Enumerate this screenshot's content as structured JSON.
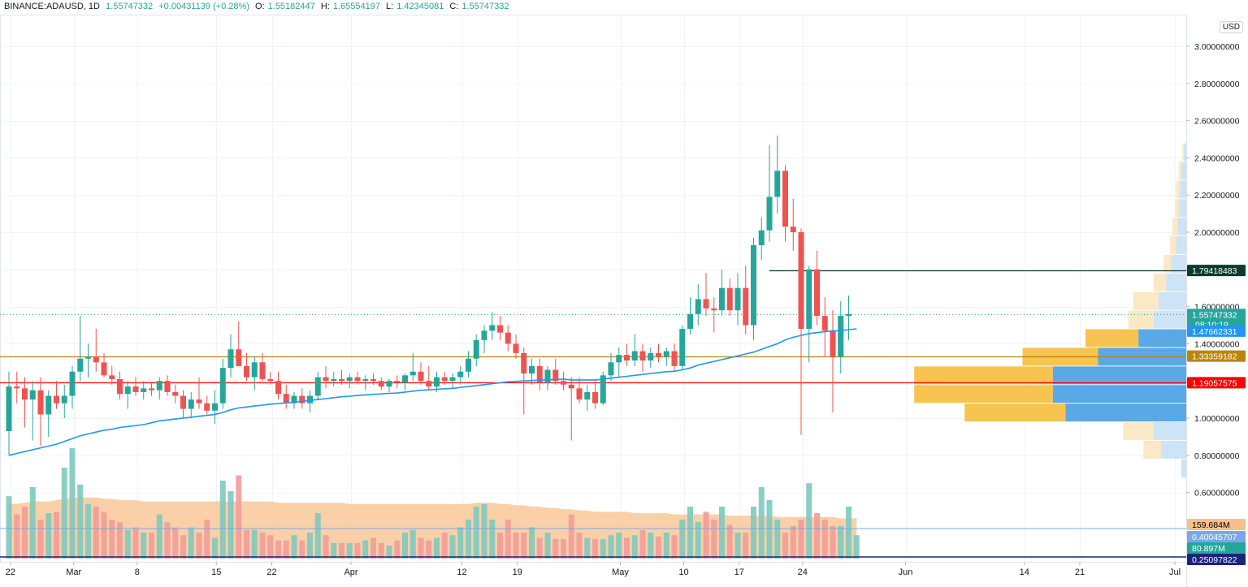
{
  "header": {
    "symbol": "BINANCE:ADAUSD, 1D",
    "last": "1.55747332",
    "change": "+0.00431139 (+0.28%)",
    "open_label": "O:",
    "open": "1.55182447",
    "high_label": "H:",
    "high": "1.65554197",
    "low_label": "L:",
    "low": "1.42345081",
    "close_label": "C:",
    "close": "1.55747332"
  },
  "currency_button": "USD",
  "colors": {
    "up": "#26a69a",
    "down": "#ef5350",
    "ma": "#2196f3",
    "line_green": "#0d3b2e",
    "line_gold": "#b8860b",
    "line_red": "#ff0000",
    "vp_up": "#5aa9e6",
    "vp_down": "#f7c451"
  },
  "chart_data": {
    "type": "candlestick",
    "x_ticks": [
      "22",
      "Mar",
      "8",
      "15",
      "22",
      "Apr",
      "12",
      "19",
      "May",
      "10",
      "17",
      "24",
      "Jun",
      "14",
      "21",
      "Jul"
    ],
    "y_ticks": [
      "3.00000000",
      "2.80000000",
      "2.60000000",
      "2.40000000",
      "2.20000000",
      "2.00000000",
      "1.80000000",
      "1.60000000",
      "1.40000000",
      "1.20000000",
      "1.00000000",
      "0.80000000",
      "0.60000000"
    ],
    "ylim": [
      0.5,
      3.1
    ],
    "candles": [
      {
        "o": 0.93,
        "h": 1.25,
        "l": 0.8,
        "c": 1.17
      },
      {
        "o": 1.17,
        "h": 1.25,
        "l": 1.08,
        "c": 1.16
      },
      {
        "o": 1.16,
        "h": 1.22,
        "l": 0.95,
        "c": 1.1
      },
      {
        "o": 1.1,
        "h": 1.2,
        "l": 0.88,
        "c": 1.15
      },
      {
        "o": 1.15,
        "h": 1.22,
        "l": 0.85,
        "c": 1.02
      },
      {
        "o": 1.02,
        "h": 1.15,
        "l": 0.9,
        "c": 1.12
      },
      {
        "o": 1.12,
        "h": 1.2,
        "l": 1.05,
        "c": 1.08
      },
      {
        "o": 1.08,
        "h": 1.18,
        "l": 1.0,
        "c": 1.12
      },
      {
        "o": 1.12,
        "h": 1.28,
        "l": 1.05,
        "c": 1.25
      },
      {
        "o": 1.25,
        "h": 1.55,
        "l": 1.2,
        "c": 1.32
      },
      {
        "o": 1.32,
        "h": 1.4,
        "l": 1.22,
        "c": 1.33
      },
      {
        "o": 1.33,
        "h": 1.48,
        "l": 1.25,
        "c": 1.3
      },
      {
        "o": 1.3,
        "h": 1.35,
        "l": 1.22,
        "c": 1.23
      },
      {
        "o": 1.23,
        "h": 1.28,
        "l": 1.18,
        "c": 1.21
      },
      {
        "o": 1.21,
        "h": 1.25,
        "l": 1.1,
        "c": 1.13
      },
      {
        "o": 1.13,
        "h": 1.2,
        "l": 1.05,
        "c": 1.17
      },
      {
        "o": 1.17,
        "h": 1.22,
        "l": 1.12,
        "c": 1.14
      },
      {
        "o": 1.14,
        "h": 1.2,
        "l": 1.1,
        "c": 1.16
      },
      {
        "o": 1.16,
        "h": 1.19,
        "l": 1.12,
        "c": 1.15
      },
      {
        "o": 1.15,
        "h": 1.22,
        "l": 1.1,
        "c": 1.2
      },
      {
        "o": 1.2,
        "h": 1.23,
        "l": 1.12,
        "c": 1.14
      },
      {
        "o": 1.14,
        "h": 1.18,
        "l": 1.08,
        "c": 1.12
      },
      {
        "o": 1.12,
        "h": 1.15,
        "l": 1.0,
        "c": 1.05
      },
      {
        "o": 1.05,
        "h": 1.14,
        "l": 1.0,
        "c": 1.1
      },
      {
        "o": 1.1,
        "h": 1.22,
        "l": 1.05,
        "c": 1.08
      },
      {
        "o": 1.08,
        "h": 1.12,
        "l": 1.02,
        "c": 1.04
      },
      {
        "o": 1.04,
        "h": 1.15,
        "l": 0.97,
        "c": 1.08
      },
      {
        "o": 1.08,
        "h": 1.32,
        "l": 1.05,
        "c": 1.27
      },
      {
        "o": 1.27,
        "h": 1.45,
        "l": 1.22,
        "c": 1.37
      },
      {
        "o": 1.37,
        "h": 1.52,
        "l": 1.3,
        "c": 1.28
      },
      {
        "o": 1.28,
        "h": 1.35,
        "l": 1.2,
        "c": 1.22
      },
      {
        "o": 1.22,
        "h": 1.33,
        "l": 1.15,
        "c": 1.3
      },
      {
        "o": 1.3,
        "h": 1.35,
        "l": 1.2,
        "c": 1.21
      },
      {
        "o": 1.21,
        "h": 1.25,
        "l": 1.18,
        "c": 1.2
      },
      {
        "o": 1.2,
        "h": 1.25,
        "l": 1.1,
        "c": 1.13
      },
      {
        "o": 1.13,
        "h": 1.18,
        "l": 1.05,
        "c": 1.08
      },
      {
        "o": 1.08,
        "h": 1.14,
        "l": 1.05,
        "c": 1.12
      },
      {
        "o": 1.12,
        "h": 1.16,
        "l": 1.05,
        "c": 1.08
      },
      {
        "o": 1.08,
        "h": 1.15,
        "l": 1.03,
        "c": 1.12
      },
      {
        "o": 1.12,
        "h": 1.25,
        "l": 1.1,
        "c": 1.22
      },
      {
        "o": 1.22,
        "h": 1.28,
        "l": 1.16,
        "c": 1.2
      },
      {
        "o": 1.2,
        "h": 1.25,
        "l": 1.17,
        "c": 1.21
      },
      {
        "o": 1.21,
        "h": 1.26,
        "l": 1.18,
        "c": 1.2
      },
      {
        "o": 1.2,
        "h": 1.24,
        "l": 1.16,
        "c": 1.22
      },
      {
        "o": 1.22,
        "h": 1.25,
        "l": 1.18,
        "c": 1.2
      },
      {
        "o": 1.2,
        "h": 1.23,
        "l": 1.15,
        "c": 1.21
      },
      {
        "o": 1.21,
        "h": 1.24,
        "l": 1.18,
        "c": 1.2
      },
      {
        "o": 1.2,
        "h": 1.22,
        "l": 1.15,
        "c": 1.17
      },
      {
        "o": 1.17,
        "h": 1.21,
        "l": 1.14,
        "c": 1.2
      },
      {
        "o": 1.2,
        "h": 1.23,
        "l": 1.16,
        "c": 1.19
      },
      {
        "o": 1.19,
        "h": 1.24,
        "l": 1.15,
        "c": 1.23
      },
      {
        "o": 1.23,
        "h": 1.35,
        "l": 1.2,
        "c": 1.25
      },
      {
        "o": 1.25,
        "h": 1.3,
        "l": 1.18,
        "c": 1.2
      },
      {
        "o": 1.2,
        "h": 1.28,
        "l": 1.15,
        "c": 1.17
      },
      {
        "o": 1.17,
        "h": 1.25,
        "l": 1.14,
        "c": 1.22
      },
      {
        "o": 1.22,
        "h": 1.25,
        "l": 1.18,
        "c": 1.2
      },
      {
        "o": 1.2,
        "h": 1.24,
        "l": 1.16,
        "c": 1.22
      },
      {
        "o": 1.22,
        "h": 1.28,
        "l": 1.18,
        "c": 1.25
      },
      {
        "o": 1.25,
        "h": 1.36,
        "l": 1.22,
        "c": 1.32
      },
      {
        "o": 1.32,
        "h": 1.45,
        "l": 1.28,
        "c": 1.42
      },
      {
        "o": 1.42,
        "h": 1.5,
        "l": 1.35,
        "c": 1.47
      },
      {
        "o": 1.47,
        "h": 1.57,
        "l": 1.42,
        "c": 1.5
      },
      {
        "o": 1.5,
        "h": 1.55,
        "l": 1.42,
        "c": 1.46
      },
      {
        "o": 1.46,
        "h": 1.5,
        "l": 1.36,
        "c": 1.4
      },
      {
        "o": 1.4,
        "h": 1.45,
        "l": 1.32,
        "c": 1.35
      },
      {
        "o": 1.35,
        "h": 1.38,
        "l": 1.02,
        "c": 1.24
      },
      {
        "o": 1.24,
        "h": 1.32,
        "l": 1.18,
        "c": 1.28
      },
      {
        "o": 1.28,
        "h": 1.32,
        "l": 1.15,
        "c": 1.19
      },
      {
        "o": 1.19,
        "h": 1.28,
        "l": 1.15,
        "c": 1.26
      },
      {
        "o": 1.26,
        "h": 1.32,
        "l": 1.18,
        "c": 1.2
      },
      {
        "o": 1.2,
        "h": 1.25,
        "l": 1.15,
        "c": 1.18
      },
      {
        "o": 1.18,
        "h": 1.22,
        "l": 0.88,
        "c": 1.16
      },
      {
        "o": 1.16,
        "h": 1.22,
        "l": 1.08,
        "c": 1.1
      },
      {
        "o": 1.1,
        "h": 1.18,
        "l": 1.04,
        "c": 1.14
      },
      {
        "o": 1.14,
        "h": 1.2,
        "l": 1.05,
        "c": 1.08
      },
      {
        "o": 1.08,
        "h": 1.25,
        "l": 1.07,
        "c": 1.23
      },
      {
        "o": 1.23,
        "h": 1.35,
        "l": 1.2,
        "c": 1.3
      },
      {
        "o": 1.3,
        "h": 1.38,
        "l": 1.22,
        "c": 1.34
      },
      {
        "o": 1.34,
        "h": 1.4,
        "l": 1.28,
        "c": 1.31
      },
      {
        "o": 1.31,
        "h": 1.45,
        "l": 1.28,
        "c": 1.36
      },
      {
        "o": 1.36,
        "h": 1.4,
        "l": 1.25,
        "c": 1.31
      },
      {
        "o": 1.31,
        "h": 1.38,
        "l": 1.27,
        "c": 1.35
      },
      {
        "o": 1.35,
        "h": 1.4,
        "l": 1.3,
        "c": 1.33
      },
      {
        "o": 1.33,
        "h": 1.38,
        "l": 1.28,
        "c": 1.36
      },
      {
        "o": 1.36,
        "h": 1.4,
        "l": 1.25,
        "c": 1.28
      },
      {
        "o": 1.28,
        "h": 1.5,
        "l": 1.26,
        "c": 1.48
      },
      {
        "o": 1.48,
        "h": 1.65,
        "l": 1.45,
        "c": 1.56
      },
      {
        "o": 1.56,
        "h": 1.72,
        "l": 1.5,
        "c": 1.64
      },
      {
        "o": 1.64,
        "h": 1.78,
        "l": 1.55,
        "c": 1.59
      },
      {
        "o": 1.59,
        "h": 1.65,
        "l": 1.46,
        "c": 1.58
      },
      {
        "o": 1.58,
        "h": 1.8,
        "l": 1.55,
        "c": 1.7
      },
      {
        "o": 1.7,
        "h": 1.75,
        "l": 1.55,
        "c": 1.58
      },
      {
        "o": 1.58,
        "h": 1.78,
        "l": 1.5,
        "c": 1.7
      },
      {
        "o": 1.7,
        "h": 1.82,
        "l": 1.45,
        "c": 1.5
      },
      {
        "o": 1.5,
        "h": 1.97,
        "l": 1.42,
        "c": 1.93
      },
      {
        "o": 1.93,
        "h": 2.08,
        "l": 1.85,
        "c": 2.01
      },
      {
        "o": 2.01,
        "h": 2.47,
        "l": 1.95,
        "c": 2.19
      },
      {
        "o": 2.19,
        "h": 2.52,
        "l": 2.1,
        "c": 2.33
      },
      {
        "o": 2.33,
        "h": 2.36,
        "l": 1.95,
        "c": 2.03
      },
      {
        "o": 2.03,
        "h": 2.18,
        "l": 1.9,
        "c": 2.0
      },
      {
        "o": 2.0,
        "h": 2.02,
        "l": 0.91,
        "c": 1.48
      },
      {
        "o": 1.48,
        "h": 1.82,
        "l": 1.3,
        "c": 1.8
      },
      {
        "o": 1.8,
        "h": 1.9,
        "l": 1.5,
        "c": 1.55
      },
      {
        "o": 1.55,
        "h": 1.65,
        "l": 1.33,
        "c": 1.47
      },
      {
        "o": 1.47,
        "h": 1.58,
        "l": 1.03,
        "c": 1.33
      },
      {
        "o": 1.33,
        "h": 1.63,
        "l": 1.24,
        "c": 1.55
      },
      {
        "o": 1.55,
        "h": 1.66,
        "l": 1.42,
        "c": 1.56
      }
    ],
    "ma": [
      0.8,
      0.81,
      0.82,
      0.83,
      0.84,
      0.85,
      0.86,
      0.875,
      0.89,
      0.905,
      0.915,
      0.925,
      0.935,
      0.94,
      0.95,
      0.955,
      0.96,
      0.965,
      0.975,
      0.985,
      0.99,
      0.995,
      1.0,
      1.005,
      1.01,
      1.015,
      1.02,
      1.03,
      1.045,
      1.055,
      1.06,
      1.065,
      1.07,
      1.075,
      1.078,
      1.082,
      1.085,
      1.09,
      1.095,
      1.1,
      1.105,
      1.11,
      1.115,
      1.118,
      1.122,
      1.125,
      1.128,
      1.13,
      1.133,
      1.135,
      1.14,
      1.145,
      1.15,
      1.152,
      1.155,
      1.158,
      1.16,
      1.165,
      1.17,
      1.175,
      1.18,
      1.185,
      1.19,
      1.195,
      1.198,
      1.2,
      1.202,
      1.205,
      1.205,
      1.208,
      1.21,
      1.205,
      1.205,
      1.205,
      1.205,
      1.21,
      1.215,
      1.22,
      1.225,
      1.23,
      1.235,
      1.24,
      1.245,
      1.25,
      1.252,
      1.26,
      1.27,
      1.285,
      1.295,
      1.305,
      1.315,
      1.325,
      1.335,
      1.345,
      1.355,
      1.37,
      1.385,
      1.4,
      1.42,
      1.435,
      1.445,
      1.455,
      1.46,
      1.465,
      1.47,
      1.47,
      1.476,
      1.48
    ],
    "volumes": [
      0.48,
      0.34,
      0.4,
      0.55,
      0.3,
      0.35,
      0.36,
      0.7,
      0.85,
      0.57,
      0.42,
      0.4,
      0.36,
      0.3,
      0.28,
      0.22,
      0.24,
      0.2,
      0.2,
      0.34,
      0.28,
      0.24,
      0.18,
      0.24,
      0.2,
      0.3,
      0.16,
      0.6,
      0.52,
      0.64,
      0.22,
      0.22,
      0.2,
      0.18,
      0.14,
      0.14,
      0.18,
      0.14,
      0.2,
      0.35,
      0.18,
      0.12,
      0.12,
      0.12,
      0.12,
      0.14,
      0.16,
      0.12,
      0.1,
      0.14,
      0.2,
      0.22,
      0.16,
      0.14,
      0.16,
      0.2,
      0.18,
      0.24,
      0.3,
      0.4,
      0.42,
      0.3,
      0.2,
      0.3,
      0.2,
      0.2,
      0.24,
      0.16,
      0.2,
      0.15,
      0.15,
      0.34,
      0.2,
      0.16,
      0.15,
      0.15,
      0.18,
      0.2,
      0.16,
      0.18,
      0.22,
      0.2,
      0.17,
      0.2,
      0.18,
      0.3,
      0.4,
      0.28,
      0.36,
      0.3,
      0.4,
      0.26,
      0.2,
      0.2,
      0.4,
      0.55,
      0.45,
      0.3,
      0.2,
      0.25,
      0.3,
      0.58,
      0.35,
      0.3,
      0.25,
      0.25,
      0.4,
      0.18
    ],
    "vol_ma": [
      0.42,
      0.42,
      0.43,
      0.44,
      0.44,
      0.44,
      0.45,
      0.46,
      0.47,
      0.47,
      0.47,
      0.47,
      0.46,
      0.46,
      0.45,
      0.45,
      0.45,
      0.44,
      0.44,
      0.44,
      0.44,
      0.44,
      0.44,
      0.44,
      0.44,
      0.44,
      0.44,
      0.44,
      0.44,
      0.44,
      0.44,
      0.44,
      0.44,
      0.44,
      0.43,
      0.43,
      0.43,
      0.43,
      0.43,
      0.43,
      0.43,
      0.43,
      0.43,
      0.42,
      0.42,
      0.42,
      0.42,
      0.42,
      0.42,
      0.42,
      0.42,
      0.42,
      0.42,
      0.42,
      0.42,
      0.42,
      0.42,
      0.42,
      0.42,
      0.43,
      0.43,
      0.43,
      0.42,
      0.42,
      0.41,
      0.41,
      0.4,
      0.4,
      0.39,
      0.39,
      0.38,
      0.38,
      0.37,
      0.37,
      0.36,
      0.36,
      0.36,
      0.36,
      0.36,
      0.35,
      0.35,
      0.35,
      0.35,
      0.35,
      0.34,
      0.34,
      0.34,
      0.34,
      0.34,
      0.34,
      0.34,
      0.33,
      0.33,
      0.33,
      0.33,
      0.33,
      0.33,
      0.32,
      0.32,
      0.32,
      0.32,
      0.32,
      0.32,
      0.32,
      0.32,
      0.31,
      0.31,
      0.31
    ],
    "volume_profile": [
      {
        "price": 2.43,
        "up": 0.01,
        "down": 0.005
      },
      {
        "price": 2.33,
        "up": 0.02,
        "down": 0.01
      },
      {
        "price": 2.23,
        "up": 0.025,
        "down": 0.015
      },
      {
        "price": 2.13,
        "up": 0.03,
        "down": 0.015
      },
      {
        "price": 2.03,
        "up": 0.035,
        "down": 0.02
      },
      {
        "price": 1.93,
        "up": 0.04,
        "down": 0.025
      },
      {
        "price": 1.83,
        "up": 0.06,
        "down": 0.03
      },
      {
        "price": 1.73,
        "up": 0.08,
        "down": 0.05
      },
      {
        "price": 1.63,
        "up": 0.11,
        "down": 0.1
      },
      {
        "price": 1.53,
        "up": 0.13,
        "down": 0.1
      },
      {
        "price": 1.43,
        "up": 0.19,
        "down": 0.21
      },
      {
        "price": 1.33,
        "up": 0.35,
        "down": 0.3
      },
      {
        "price": 1.23,
        "up": 0.53,
        "down": 0.55
      },
      {
        "price": 1.13,
        "up": 0.53,
        "down": 0.55
      },
      {
        "price": 1.03,
        "up": 0.48,
        "down": 0.4
      },
      {
        "price": 0.93,
        "up": 0.13,
        "down": 0.12
      },
      {
        "price": 0.83,
        "up": 0.1,
        "down": 0.07
      },
      {
        "price": 0.73,
        "up": 0.02,
        "down": 0.0
      }
    ],
    "hlines": [
      {
        "value": 1.79418483,
        "label": "1.79418483",
        "color": "#0d3b2e",
        "from_index": 96
      },
      {
        "value": 1.33359182,
        "label": "1.33359182",
        "color": "#b8860b",
        "from_index": 0
      },
      {
        "value": 1.19057575,
        "label": "1.19057575",
        "color": "#ff0000",
        "from_index": 0
      }
    ],
    "price_tags": [
      {
        "value": 1.55747332,
        "label": "1.55747332",
        "sub": "08:10:19",
        "color": "#26a69a"
      },
      {
        "value": 1.47662331,
        "label": "1.47662331",
        "color": "#2196f3"
      }
    ],
    "volume_tags": [
      {
        "label": "159.684M",
        "color": "#f7c08a",
        "text": "#000000"
      },
      {
        "label": "0.40045707",
        "color": "#7aa8e8",
        "text": "#ffffff"
      },
      {
        "label": "80.897M",
        "color": "#26a69a",
        "text": "#ffffff"
      },
      {
        "label": "0.25097822",
        "color": "#1a237e",
        "text": "#ffffff"
      }
    ]
  }
}
